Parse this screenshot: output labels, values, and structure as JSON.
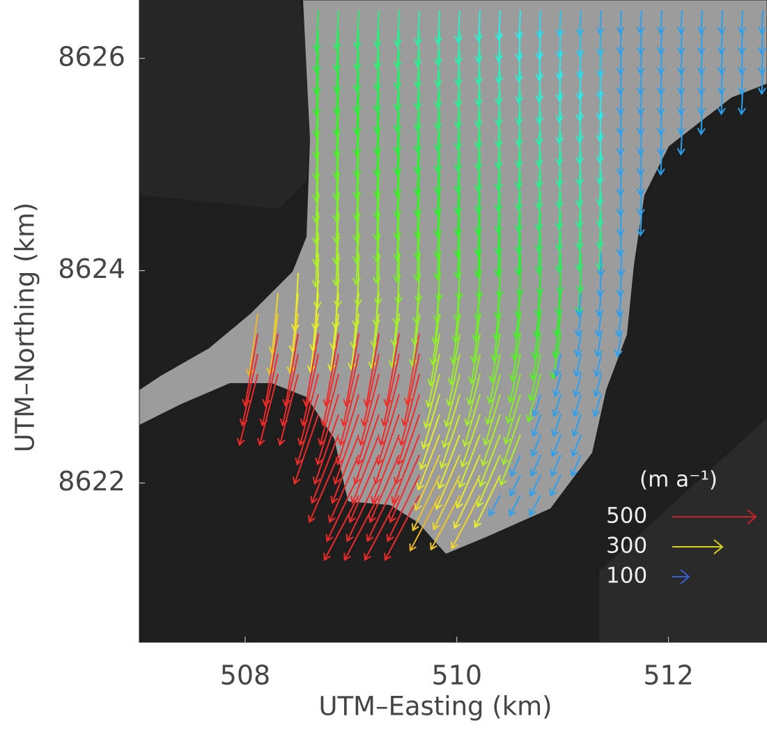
{
  "chart_data": {
    "type": "vector-field",
    "x_label": "UTM–Easting (km)",
    "y_label": "UTM–Northing (km)",
    "xlim": [
      507,
      513
    ],
    "ylim": [
      8620.5,
      8626.55
    ],
    "xticks": [
      508,
      510,
      512
    ],
    "yticks": [
      8622,
      8624,
      8626
    ],
    "legend": {
      "title": "(m a⁻¹)",
      "entries": [
        {
          "label": "500",
          "value": 500,
          "color": "#c8232a"
        },
        {
          "label": "300",
          "value": 300,
          "color": "#d8d21f"
        },
        {
          "label": "100",
          "value": 100,
          "color": "#3a5fd0"
        }
      ]
    }
  }
}
